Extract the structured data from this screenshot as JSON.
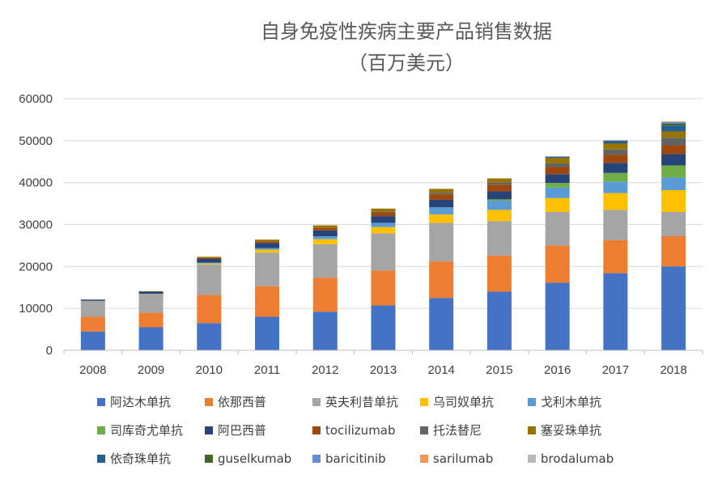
{
  "chart_data": {
    "type": "bar",
    "stacked": true,
    "title": "自身免疫性疾病主要产品销售数据",
    "subtitle": "（百万美元）",
    "xlabel": "",
    "ylabel": "",
    "ylim": [
      0,
      60000
    ],
    "yticks": [
      "0",
      "10000",
      "20000",
      "30000",
      "40000",
      "50000",
      "60000"
    ],
    "grid": true,
    "legend_position": "bottom",
    "categories": [
      "2008",
      "2009",
      "2010",
      "2011",
      "2012",
      "2013",
      "2014",
      "2015",
      "2016",
      "2017",
      "2018"
    ],
    "series": [
      {
        "name": "阿达木单抗",
        "color": "#4472C4",
        "values": [
          4500,
          5500,
          6500,
          8000,
          9200,
          10700,
          12500,
          14000,
          16100,
          18400,
          20000
        ]
      },
      {
        "name": "依那西普",
        "color": "#ED7D31",
        "values": [
          3500,
          3500,
          6700,
          7300,
          8100,
          8300,
          8700,
          8600,
          8900,
          7900,
          7200
        ]
      },
      {
        "name": "英夫利昔单抗",
        "color": "#A5A5A5",
        "values": [
          3800,
          4500,
          7300,
          8000,
          8000,
          8900,
          9200,
          8200,
          8000,
          7200,
          5800
        ]
      },
      {
        "name": "乌司奴单抗",
        "color": "#FFC000",
        "values": [
          0,
          0,
          200,
          700,
          1200,
          1500,
          2000,
          2700,
          3300,
          4000,
          5200
        ]
      },
      {
        "name": "戈利木单抗",
        "color": "#5B9BD5",
        "values": [
          0,
          0,
          200,
          400,
          700,
          1000,
          1700,
          2200,
          2500,
          2700,
          3000
        ]
      },
      {
        "name": "司库奇尤单抗",
        "color": "#70AD47",
        "values": [
          0,
          0,
          0,
          0,
          0,
          0,
          0,
          300,
          1100,
          2100,
          2900
        ]
      },
      {
        "name": "阿巴西普",
        "color": "#264478",
        "values": [
          300,
          500,
          900,
          1200,
          1400,
          1600,
          1800,
          1900,
          2100,
          2400,
          2700
        ]
      },
      {
        "name": "tocilizumab",
        "color": "#9E480E",
        "values": [
          0,
          0,
          200,
          400,
          600,
          800,
          1300,
          1600,
          1700,
          1900,
          2100
        ]
      },
      {
        "name": "托法替尼",
        "color": "#636363",
        "values": [
          0,
          0,
          0,
          0,
          0,
          200,
          400,
          500,
          900,
          1300,
          1800
        ]
      },
      {
        "name": "塞妥珠单抗",
        "color": "#997300",
        "values": [
          0,
          100,
          300,
          400,
          600,
          800,
          900,
          1000,
          1300,
          1400,
          1500
        ]
      },
      {
        "name": "依奇珠单抗",
        "color": "#255E91",
        "values": [
          0,
          0,
          0,
          0,
          0,
          0,
          0,
          0,
          300,
          600,
          1400
        ]
      },
      {
        "name": "guselkumab",
        "color": "#43682B",
        "values": [
          0,
          0,
          0,
          0,
          0,
          0,
          0,
          0,
          0,
          100,
          500
        ]
      },
      {
        "name": "baricitinib",
        "color": "#698ED0",
        "values": [
          0,
          0,
          0,
          0,
          0,
          0,
          0,
          0,
          0,
          100,
          300
        ]
      },
      {
        "name": "sarilumab",
        "color": "#F1975A",
        "values": [
          0,
          0,
          0,
          0,
          0,
          0,
          0,
          0,
          0,
          0,
          100
        ]
      },
      {
        "name": "brodalumab",
        "color": "#B7B7B7",
        "values": [
          0,
          0,
          0,
          0,
          0,
          0,
          0,
          0,
          0,
          0,
          100
        ]
      }
    ]
  }
}
